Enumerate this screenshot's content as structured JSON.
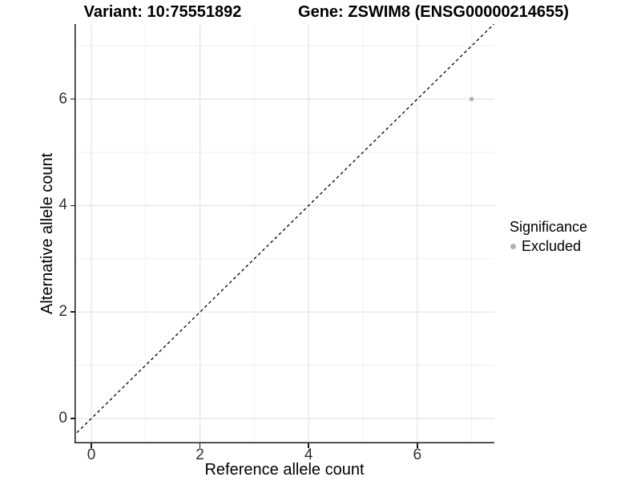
{
  "titles": {
    "variant": "Variant: 10:75551892",
    "gene": "Gene: ZSWIM8 (ENSG00000214655)"
  },
  "chart_data": {
    "type": "scatter",
    "xlabel": "Reference allele count",
    "ylabel": "Alternative allele count",
    "x_ticks": [
      0,
      2,
      4,
      6
    ],
    "y_ticks": [
      0,
      2,
      4,
      6
    ],
    "x_minor_gridlines": [
      1,
      3,
      5,
      7
    ],
    "y_minor_gridlines": [
      1,
      3,
      5,
      7
    ],
    "xlim": [
      -0.37,
      7.42
    ],
    "ylim": [
      -0.47,
      7.41
    ],
    "grid": "major+minor",
    "points": [
      {
        "x": 7,
        "y": 6,
        "significance": "Excluded"
      }
    ],
    "reference_line": {
      "slope": 1,
      "intercept": 0,
      "style": "dashed",
      "color": "#000000"
    },
    "legend": {
      "title": "Significance",
      "position": "right",
      "entries": [
        {
          "label": "Excluded",
          "color": "#b2b2b2"
        }
      ]
    },
    "colors": {
      "background": "#ffffff",
      "grid_major": "#e4e4e4",
      "grid_minor": "#f0f0f0",
      "axis_line": "#1a1a1a",
      "tick_text": "#303030",
      "title_text": "#000000"
    }
  }
}
